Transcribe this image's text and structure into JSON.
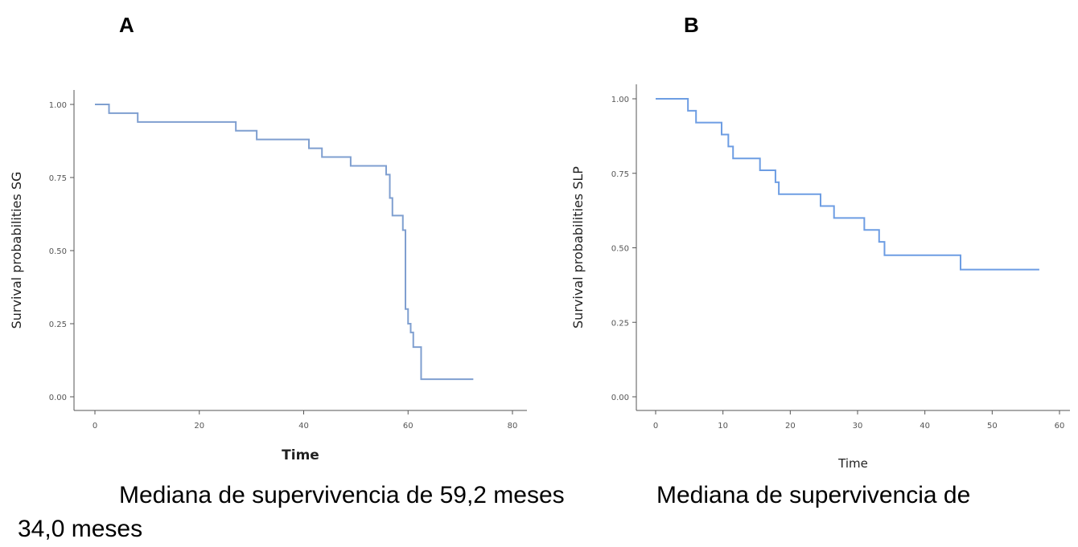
{
  "panels": {
    "a": {
      "letter": "A",
      "caption": "Mediana de supervivencia de 59,2 meses"
    },
    "b": {
      "letter": "B",
      "caption_line1": "Mediana de supervivencia de",
      "caption_line2": "34,0 meses"
    }
  },
  "colors": {
    "curve_a": "#7f9fd0",
    "curve_b": "#6d9de3",
    "axis": "#555555"
  },
  "chart_data": [
    {
      "type": "line",
      "step": true,
      "xlabel": "Time",
      "ylabel": "Survival probabilities SG",
      "xlim": [
        0,
        80
      ],
      "ylim": [
        0,
        1
      ],
      "xticks": [
        0,
        20,
        40,
        60,
        80
      ],
      "yticks": [
        0.0,
        0.25,
        0.5,
        0.75,
        1.0
      ],
      "ytick_labels": [
        "0.00",
        "0.25",
        "0.50",
        "0.75",
        "1.00"
      ],
      "series": [
        {
          "x": [
            0,
            2.7,
            8.2,
            27.0,
            31.0,
            41.0,
            43.5,
            49.0,
            55.8,
            56.5,
            57.0,
            59.0,
            59.5,
            60.0,
            60.5,
            61.0,
            62.5,
            72.5
          ],
          "y": [
            1.0,
            0.97,
            0.94,
            0.91,
            0.88,
            0.85,
            0.82,
            0.79,
            0.76,
            0.68,
            0.62,
            0.57,
            0.3,
            0.25,
            0.22,
            0.17,
            0.06,
            0.06
          ]
        }
      ],
      "grid": false
    },
    {
      "type": "line",
      "step": true,
      "xlabel": "Time",
      "ylabel": "Survival probabilities SLP",
      "xlim": [
        0,
        60
      ],
      "ylim": [
        0,
        1
      ],
      "xticks": [
        0,
        10,
        20,
        30,
        40,
        50,
        60
      ],
      "yticks": [
        0.0,
        0.25,
        0.5,
        0.75,
        1.0
      ],
      "ytick_labels": [
        "0.00",
        "0.25",
        "0.50",
        "0.75",
        "1.00"
      ],
      "series": [
        {
          "x": [
            0,
            4.8,
            6.0,
            9.8,
            10.8,
            11.5,
            15.5,
            17.8,
            18.3,
            24.5,
            26.5,
            31.0,
            33.2,
            34.0,
            45.3,
            57.0
          ],
          "y": [
            1.0,
            0.96,
            0.92,
            0.88,
            0.84,
            0.8,
            0.76,
            0.72,
            0.68,
            0.64,
            0.6,
            0.56,
            0.52,
            0.475,
            0.427,
            0.427
          ]
        }
      ],
      "grid": false
    }
  ]
}
